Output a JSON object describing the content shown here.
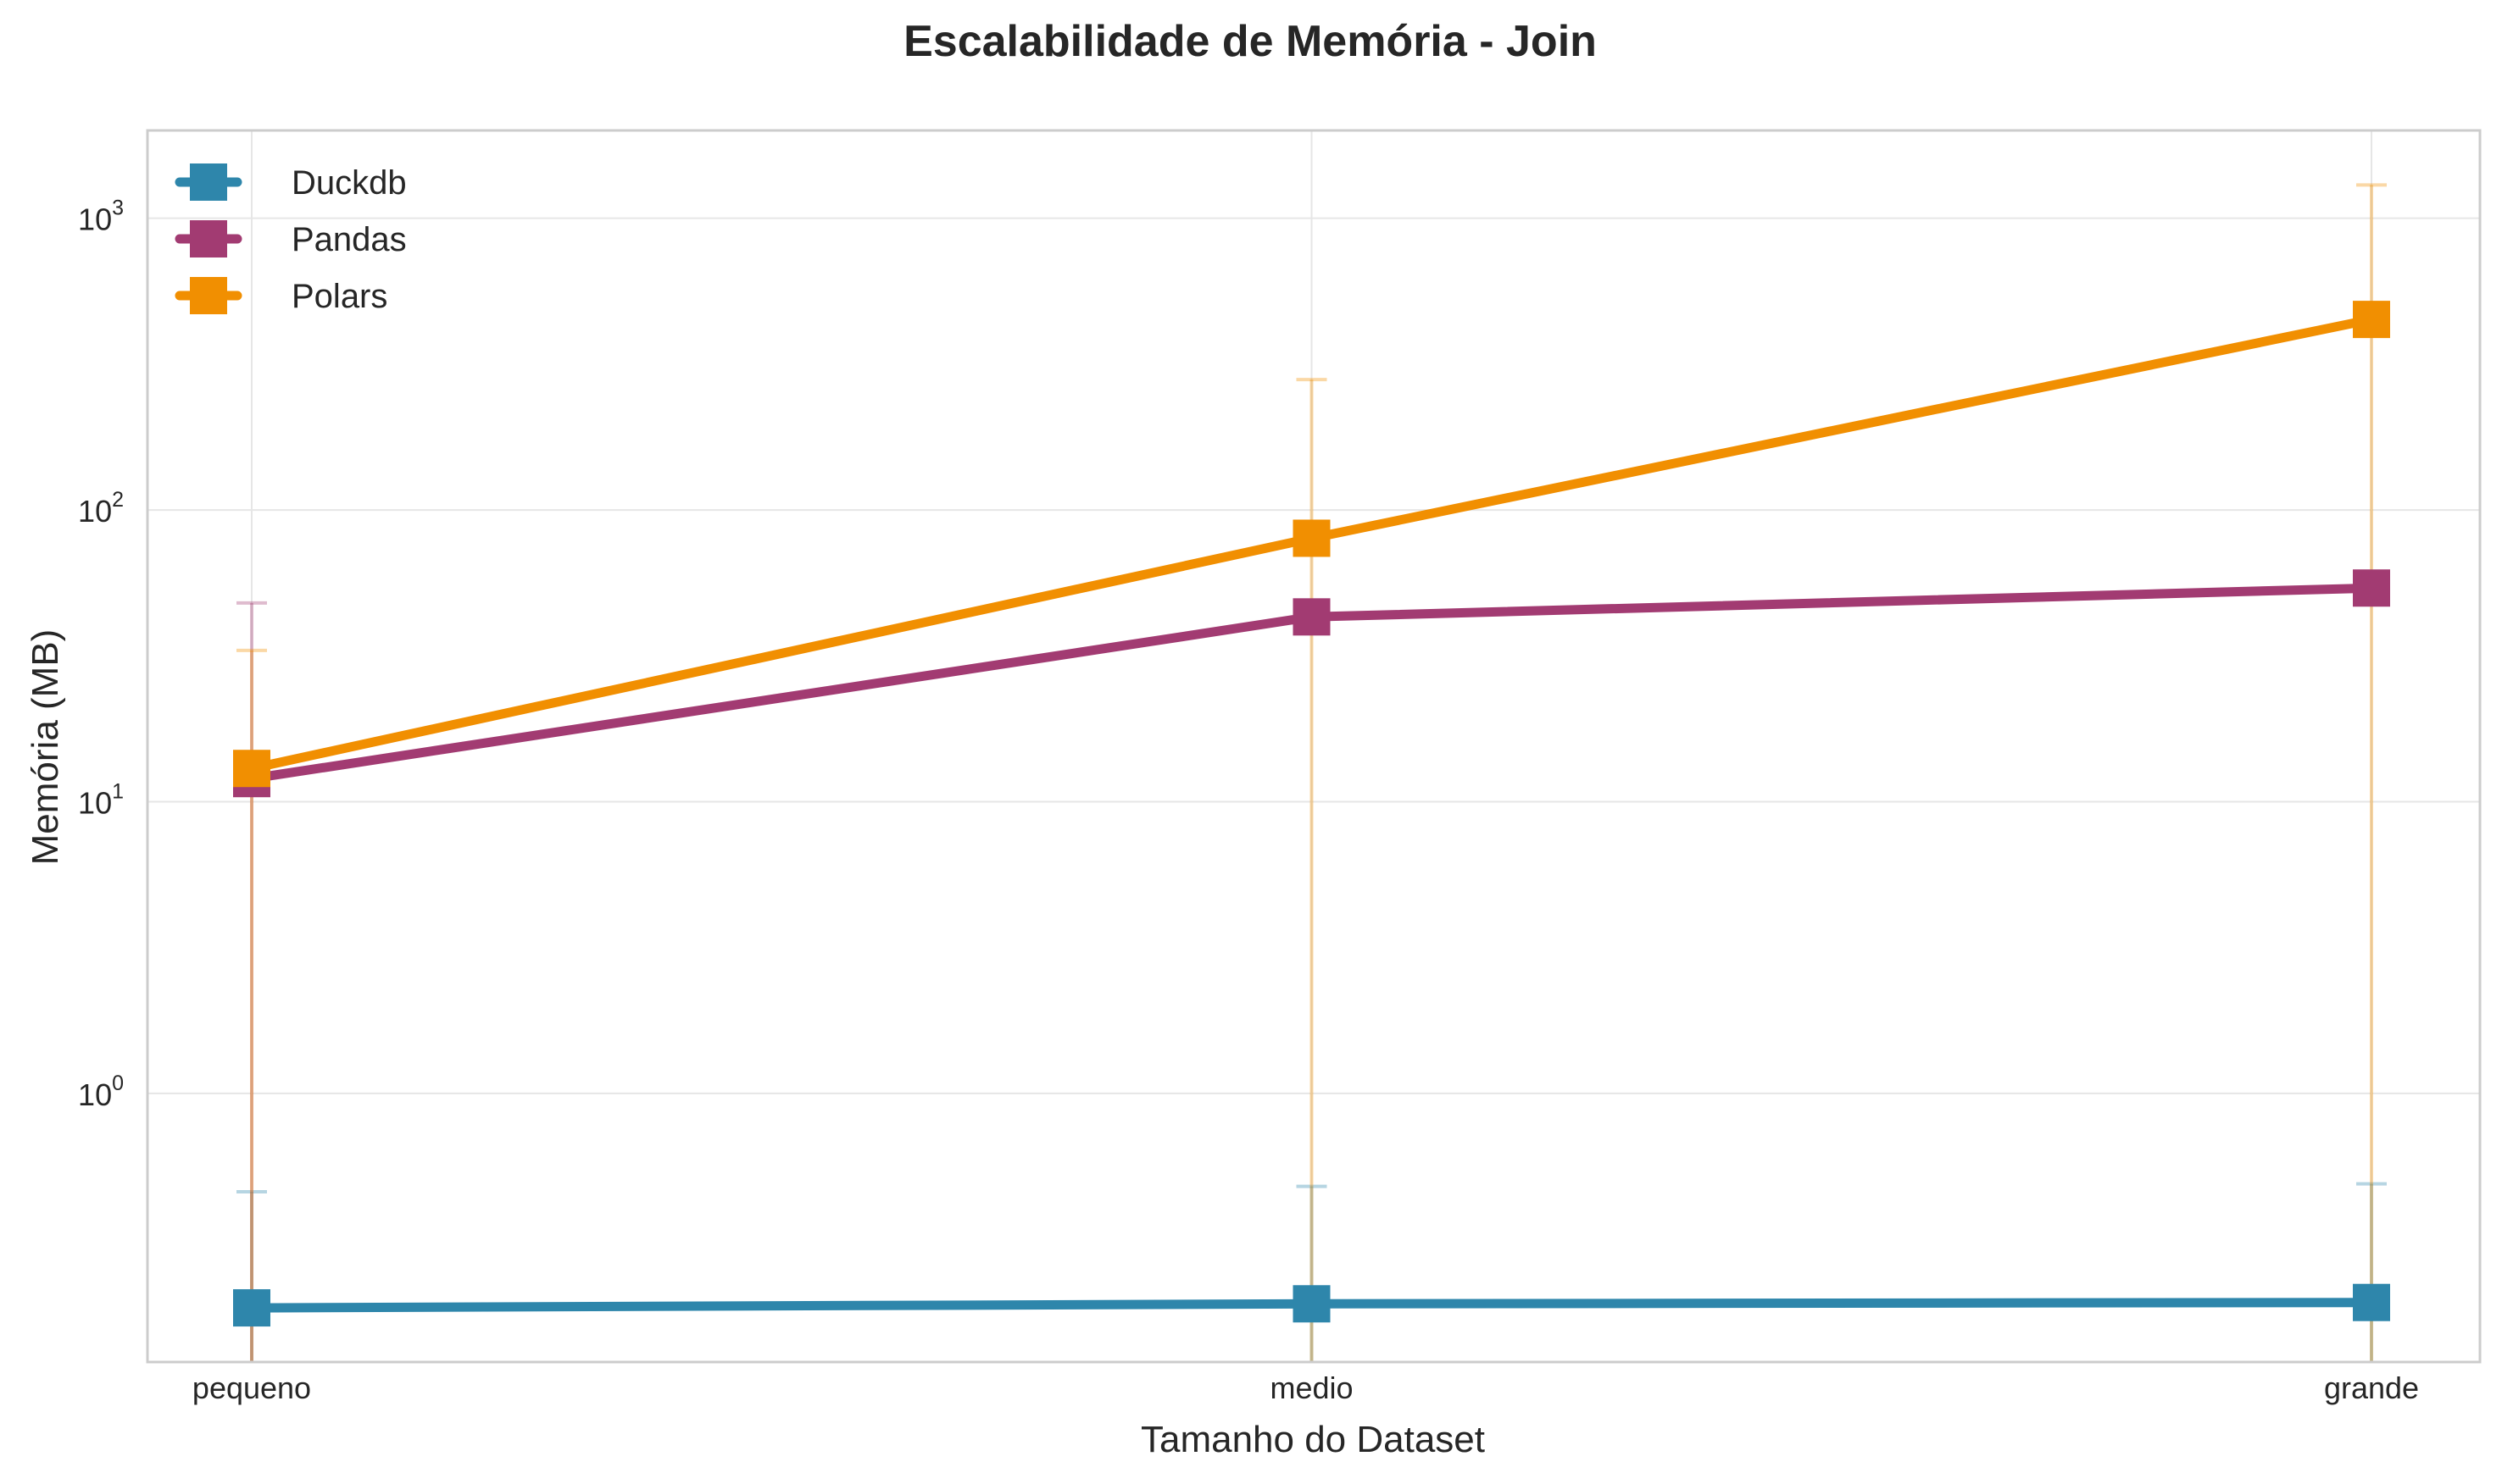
{
  "chart_data": {
    "type": "line",
    "title": "Escalabilidade de Memória - Join",
    "xlabel": "Tamanho do Dataset",
    "ylabel": "Memória (MB)",
    "yscale": "log",
    "ylim": [
      0.12,
      2000
    ],
    "grid": true,
    "legend_position": "top-left",
    "categories": [
      "pequeno",
      "medio",
      "grande"
    ],
    "y_ticks": [
      {
        "value": 1,
        "base": "10",
        "exp": "0"
      },
      {
        "value": 10,
        "base": "10",
        "exp": "1"
      },
      {
        "value": 100,
        "base": "10",
        "exp": "2"
      },
      {
        "value": 1000,
        "base": "10",
        "exp": "3"
      }
    ],
    "series": [
      {
        "name": "Duckdb",
        "color": "#2e86ab",
        "values": [
          0.184,
          0.19,
          0.192
        ],
        "error_upper": [
          0.46,
          0.48,
          0.49
        ]
      },
      {
        "name": "Pandas",
        "color": "#a23b72",
        "values": [
          12,
          43,
          54
        ],
        "error_upper": [
          48,
          null,
          null
        ]
      },
      {
        "name": "Polars",
        "color": "#f18f01",
        "values": [
          13,
          80,
          450
        ],
        "error_upper": [
          33,
          280,
          1300
        ]
      }
    ]
  }
}
